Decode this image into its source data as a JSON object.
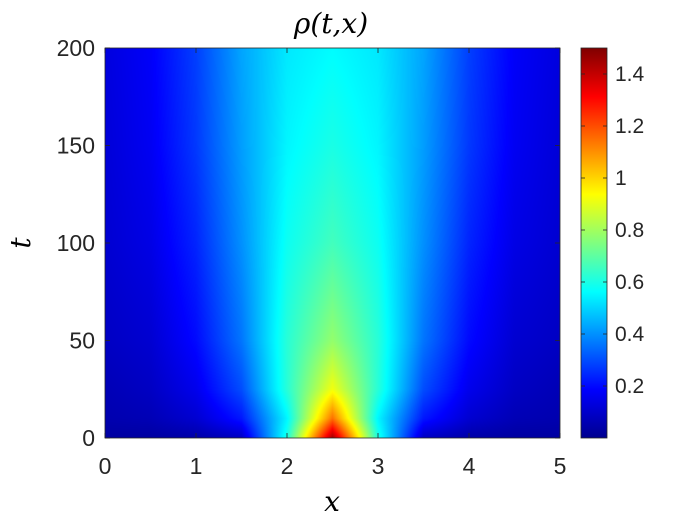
{
  "chart_data": {
    "type": "heatmap",
    "title": "ρ(t,x)",
    "xlabel": "x",
    "ylabel": "t",
    "xlim": [
      0,
      5
    ],
    "ylim": [
      0,
      200
    ],
    "xticks": [
      "0",
      "1",
      "2",
      "3",
      "4",
      "5"
    ],
    "yticks": [
      "0",
      "50",
      "100",
      "150",
      "200"
    ],
    "colormap": "jet",
    "colorbar": {
      "range": [
        0.0,
        1.5
      ],
      "ticks": [
        "0.2",
        "0.4",
        "0.6",
        "0.8",
        "1",
        "1.2",
        "1.4"
      ]
    },
    "field_samples": {
      "x": [
        0,
        0.5,
        1.0,
        1.5,
        2.0,
        2.5,
        3.0,
        3.5,
        4.0,
        4.5,
        5.0
      ],
      "t": [
        0,
        10,
        25,
        50,
        100,
        150,
        200
      ],
      "rho": [
        [
          0.05,
          0.05,
          0.06,
          0.1,
          0.6,
          1.45,
          0.6,
          0.1,
          0.06,
          0.05,
          0.05
        ],
        [
          0.07,
          0.08,
          0.12,
          0.22,
          0.55,
          1.15,
          0.55,
          0.22,
          0.12,
          0.08,
          0.07
        ],
        [
          0.08,
          0.1,
          0.16,
          0.3,
          0.62,
          0.92,
          0.62,
          0.3,
          0.16,
          0.1,
          0.08
        ],
        [
          0.1,
          0.12,
          0.2,
          0.36,
          0.62,
          0.78,
          0.62,
          0.36,
          0.2,
          0.12,
          0.1
        ],
        [
          0.12,
          0.15,
          0.24,
          0.4,
          0.58,
          0.66,
          0.58,
          0.4,
          0.24,
          0.15,
          0.12
        ],
        [
          0.13,
          0.17,
          0.27,
          0.42,
          0.55,
          0.6,
          0.55,
          0.42,
          0.27,
          0.17,
          0.13
        ],
        [
          0.14,
          0.18,
          0.28,
          0.43,
          0.53,
          0.56,
          0.53,
          0.43,
          0.28,
          0.18,
          0.14
        ]
      ]
    }
  }
}
